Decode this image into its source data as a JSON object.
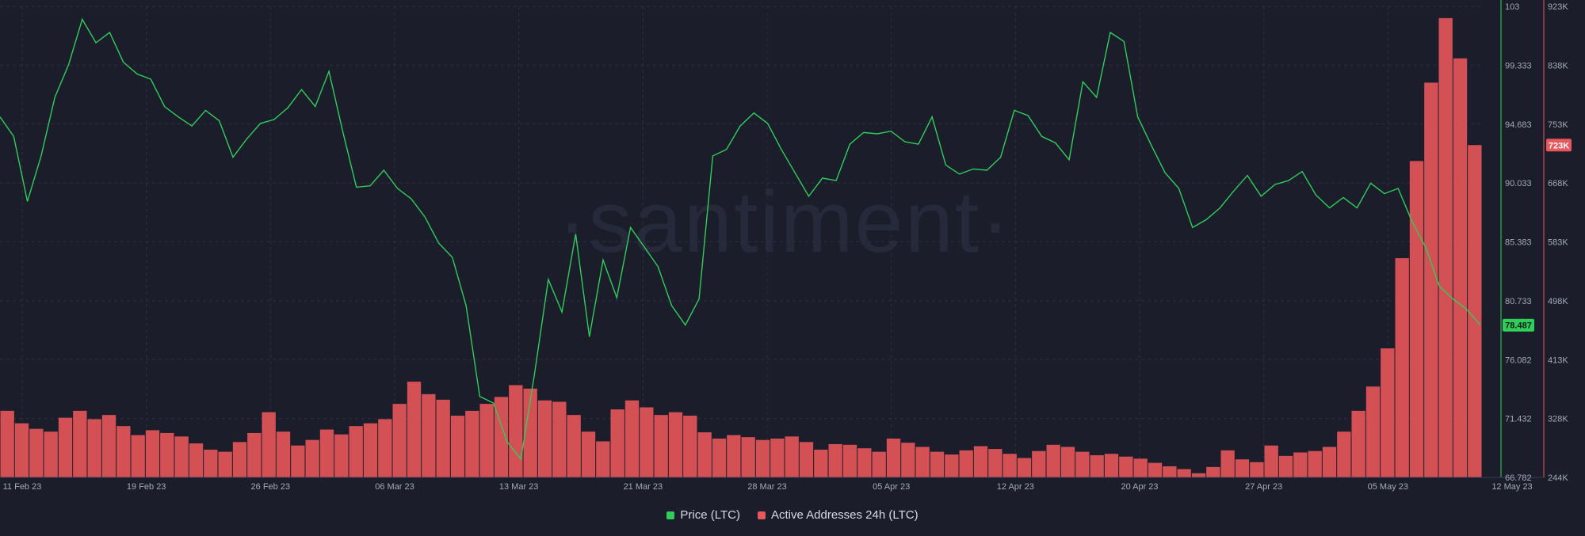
{
  "watermark": "·santiment·",
  "chart_data": {
    "type": "line",
    "x_tick_labels": [
      "11 Feb 23",
      "19 Feb 23",
      "26 Feb 23",
      "06 Mar 23",
      "13 Mar 23",
      "21 Mar 23",
      "28 Mar 23",
      "05 Apr 23",
      "12 Apr 23",
      "20 Apr 23",
      "27 Apr 23",
      "05 May 23",
      "12 May 23"
    ],
    "x_range": [
      "2023-02-11",
      "2023-05-12"
    ],
    "series": [
      {
        "name": "Price (LTC)",
        "type": "line",
        "color": "#2fce5b",
        "axis": "left-right-inner",
        "ylim": [
          66.782,
          103
        ],
        "tick_labels": [
          "103",
          "99.333",
          "94.683",
          "90.033",
          "85.383",
          "80.733",
          "76.082",
          "71.432",
          "66.782"
        ],
        "last_value_label": "78.487",
        "values": [
          94.5,
          93.0,
          88.0,
          91.5,
          96.0,
          98.5,
          102.0,
          100.2,
          101.0,
          98.7,
          97.8,
          97.4,
          95.3,
          94.5,
          93.8,
          95.0,
          94.2,
          91.4,
          92.8,
          94.0,
          94.3,
          95.2,
          96.6,
          95.3,
          98.0,
          93.4,
          89.1,
          89.2,
          90.4,
          89.0,
          88.2,
          86.8,
          84.8,
          83.7,
          80.0,
          73.0,
          72.5,
          69.5,
          68.2,
          74.8,
          82.0,
          79.5,
          85.5,
          77.6,
          83.5,
          80.6,
          86.0,
          84.5,
          83.0,
          80.0,
          78.5,
          80.5,
          91.5,
          92.0,
          93.8,
          94.8,
          94.0,
          92.0,
          90.2,
          88.4,
          89.8,
          89.6,
          92.4,
          93.3,
          93.2,
          93.4,
          92.6,
          92.4,
          94.5,
          90.8,
          90.1,
          90.5,
          90.4,
          91.4,
          95.0,
          94.6,
          93.0,
          92.5,
          91.2,
          97.2,
          96.0,
          101.0,
          100.3,
          94.5,
          92.3,
          90.2,
          89.0,
          86.0,
          86.6,
          87.5,
          88.8,
          90.0,
          88.4,
          89.3,
          89.6,
          90.3,
          88.5,
          87.5,
          88.3,
          87.5,
          89.4,
          88.6,
          89.0,
          86.5,
          84.5,
          81.5,
          80.5,
          79.7,
          78.487
        ],
        "x_fraction_of_range": "evenly spaced over date range"
      },
      {
        "name": "Active Addresses 24h (LTC)",
        "type": "bar",
        "color": "#e8575a",
        "axis": "right-outer",
        "ylim": [
          244000,
          923000
        ],
        "tick_labels": [
          "923K",
          "838K",
          "753K",
          "668K",
          "583K",
          "498K",
          "413K",
          "328K",
          "244K"
        ],
        "last_value_label": "723K",
        "values": [
          340000,
          322000,
          314000,
          310000,
          330000,
          340000,
          328000,
          334000,
          318000,
          305000,
          312000,
          308000,
          303000,
          293000,
          284000,
          281000,
          295000,
          308000,
          338000,
          310000,
          290000,
          298000,
          313000,
          306000,
          318000,
          322000,
          328000,
          350000,
          382000,
          364000,
          356000,
          333000,
          340000,
          350000,
          360000,
          377000,
          372000,
          355000,
          353000,
          334000,
          310000,
          296000,
          342000,
          355000,
          345000,
          334000,
          338000,
          333000,
          309000,
          300000,
          305000,
          302000,
          298000,
          300000,
          303000,
          295000,
          284000,
          292000,
          291000,
          286000,
          281000,
          300000,
          294000,
          288000,
          281000,
          277000,
          283000,
          289000,
          285000,
          278000,
          272000,
          282000,
          291000,
          288000,
          281000,
          276000,
          278000,
          274000,
          271000,
          265000,
          260000,
          256000,
          250000,
          259000,
          283000,
          270000,
          266000,
          290000,
          275000,
          280000,
          282000,
          288000,
          310000,
          340000,
          375000,
          430000,
          560000,
          700000,
          813000,
          906000,
          848000,
          723000
        ]
      }
    ],
    "legend": [
      "Price (LTC)",
      "Active Addresses 24h (LTC)"
    ],
    "legend_position": "bottom-center",
    "grid": true
  }
}
